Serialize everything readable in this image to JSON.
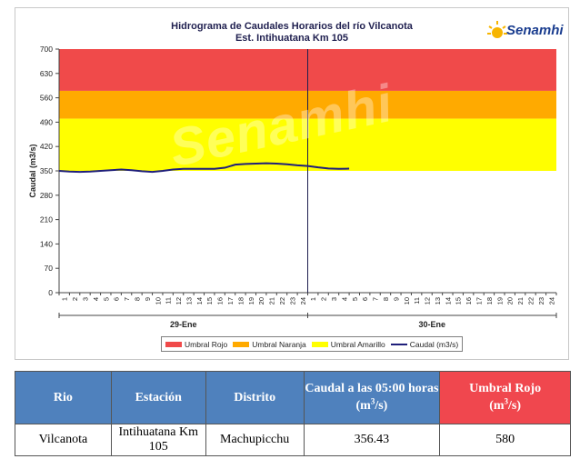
{
  "chart": {
    "title_line1": "Hidrograma de Caudales Horarios del río Vilcanota",
    "title_line2": "Est. Intihuatana Km 105",
    "logo_text": "Senamhi",
    "watermark_text": "Senamhi",
    "day_labels": [
      "29-Ene",
      "30-Ene"
    ],
    "legend": [
      {
        "label": "Umbral Rojo",
        "color": "#f04a4a"
      },
      {
        "label": "Umbral Naranja",
        "color": "#ffaa00"
      },
      {
        "label": "Umbral Amarillo",
        "color": "#ffff00"
      },
      {
        "label": "Caudal (m3/s)",
        "color": "#1f1f7a"
      }
    ]
  },
  "chart_data": {
    "type": "line",
    "ylabel": "Caudal  (m3/s)",
    "ylim": [
      0,
      700
    ],
    "yticks": [
      0,
      70,
      140,
      210,
      280,
      350,
      420,
      490,
      560,
      630,
      700
    ],
    "xlabel": "",
    "x_tick_labels": [
      "1",
      "2",
      "3",
      "4",
      "5",
      "6",
      "7",
      "8",
      "9",
      "10",
      "11",
      "12",
      "13",
      "14",
      "15",
      "16",
      "17",
      "18",
      "19",
      "20",
      "21",
      "22",
      "23",
      "24",
      "1",
      "2",
      "3",
      "4",
      "5",
      "6",
      "7",
      "8",
      "9",
      "10",
      "11",
      "12",
      "13",
      "14",
      "15",
      "16",
      "17",
      "18",
      "19",
      "20",
      "21",
      "22",
      "23",
      "24"
    ],
    "thresholds": {
      "amarillo": [
        350,
        500
      ],
      "naranja": [
        500,
        580
      ],
      "rojo": [
        580,
        700
      ]
    },
    "series": [
      {
        "name": "Caudal (m3/s)",
        "color": "#1f1f7a",
        "values": [
          350,
          348,
          347,
          348,
          350,
          352,
          354,
          352,
          349,
          347,
          350,
          354,
          356,
          356,
          356,
          356,
          359,
          368,
          370,
          371,
          372,
          371,
          369,
          366,
          364,
          360,
          357,
          356,
          356.43
        ]
      }
    ]
  },
  "table": {
    "headers": {
      "rio": "Rio",
      "estacion": "Estación",
      "distrito": "Distrito",
      "caudal": "Caudal a las 05:00 horas",
      "caudal_unit": "(m3/s)",
      "umbral": "Umbral Rojo",
      "umbral_unit": "(m3/s)"
    },
    "row": {
      "rio": "Vilcanota",
      "estacion": "Intihuatana Km 105",
      "distrito": "Machupicchu",
      "caudal": "356.43",
      "umbral": "580"
    }
  }
}
